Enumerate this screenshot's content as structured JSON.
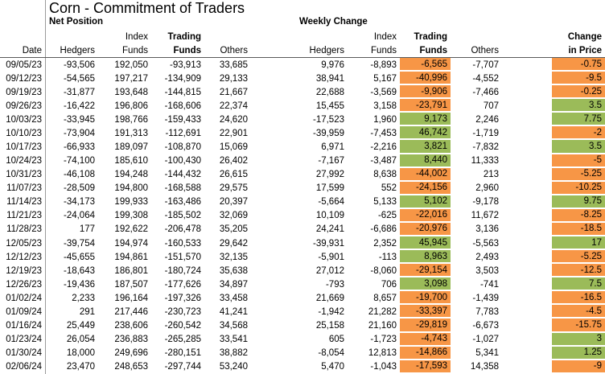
{
  "title": "Corn - Commitment of Traders",
  "sections": {
    "net_position": "Net Position",
    "weekly_change": "Weekly Change"
  },
  "columns": {
    "date": "Date",
    "hedgers": "Hedgers",
    "index_line1": "Index",
    "index_line2": "Funds",
    "trading_line1": "Trading",
    "trading_line2": "Funds",
    "others": "Others",
    "change_line1": "Change",
    "change_line2": "in Price"
  },
  "colors": {
    "negative": "#F79646",
    "positive": "#9BBB59"
  },
  "rows": [
    {
      "date": "09/05/23",
      "np": [
        "-93,506",
        "192,050",
        "-93,913",
        "33,685"
      ],
      "wc": [
        "9,976",
        "-8,893",
        "-6,565",
        "-7,707"
      ],
      "price": "-0.75"
    },
    {
      "date": "09/12/23",
      "np": [
        "-54,565",
        "197,217",
        "-134,909",
        "29,133"
      ],
      "wc": [
        "38,941",
        "5,167",
        "-40,996",
        "-4,552"
      ],
      "price": "-9.5"
    },
    {
      "date": "09/19/23",
      "np": [
        "-31,877",
        "193,648",
        "-144,815",
        "21,667"
      ],
      "wc": [
        "22,688",
        "-3,569",
        "-9,906",
        "-7,466"
      ],
      "price": "-0.25"
    },
    {
      "date": "09/26/23",
      "np": [
        "-16,422",
        "196,806",
        "-168,606",
        "22,374"
      ],
      "wc": [
        "15,455",
        "3,158",
        "-23,791",
        "707"
      ],
      "price": "3.5"
    },
    {
      "date": "10/03/23",
      "np": [
        "-33,945",
        "198,766",
        "-159,433",
        "24,620"
      ],
      "wc": [
        "-17,523",
        "1,960",
        "9,173",
        "2,246"
      ],
      "price": "7.75"
    },
    {
      "date": "10/10/23",
      "np": [
        "-73,904",
        "191,313",
        "-112,691",
        "22,901"
      ],
      "wc": [
        "-39,959",
        "-7,453",
        "46,742",
        "-1,719"
      ],
      "price": "-2"
    },
    {
      "date": "10/17/23",
      "np": [
        "-66,933",
        "189,097",
        "-108,870",
        "15,069"
      ],
      "wc": [
        "6,971",
        "-2,216",
        "3,821",
        "-7,832"
      ],
      "price": "3.5"
    },
    {
      "date": "10/24/23",
      "np": [
        "-74,100",
        "185,610",
        "-100,430",
        "26,402"
      ],
      "wc": [
        "-7,167",
        "-3,487",
        "8,440",
        "11,333"
      ],
      "price": "-5"
    },
    {
      "date": "10/31/23",
      "np": [
        "-46,108",
        "194,248",
        "-144,432",
        "26,615"
      ],
      "wc": [
        "27,992",
        "8,638",
        "-44,002",
        "213"
      ],
      "price": "-5.25"
    },
    {
      "date": "11/07/23",
      "np": [
        "-28,509",
        "194,800",
        "-168,588",
        "29,575"
      ],
      "wc": [
        "17,599",
        "552",
        "-24,156",
        "2,960"
      ],
      "price": "-10.25"
    },
    {
      "date": "11/14/23",
      "np": [
        "-34,173",
        "199,933",
        "-163,486",
        "20,397"
      ],
      "wc": [
        "-5,664",
        "5,133",
        "5,102",
        "-9,178"
      ],
      "price": "9.75"
    },
    {
      "date": "11/21/23",
      "np": [
        "-24,064",
        "199,308",
        "-185,502",
        "32,069"
      ],
      "wc": [
        "10,109",
        "-625",
        "-22,016",
        "11,672"
      ],
      "price": "-8.25"
    },
    {
      "date": "11/28/23",
      "np": [
        "177",
        "192,622",
        "-206,478",
        "35,205"
      ],
      "wc": [
        "24,241",
        "-6,686",
        "-20,976",
        "3,136"
      ],
      "price": "-18.5"
    },
    {
      "date": "12/05/23",
      "np": [
        "-39,754",
        "194,974",
        "-160,533",
        "29,642"
      ],
      "wc": [
        "-39,931",
        "2,352",
        "45,945",
        "-5,563"
      ],
      "price": "17"
    },
    {
      "date": "12/12/23",
      "np": [
        "-45,655",
        "194,861",
        "-151,570",
        "32,135"
      ],
      "wc": [
        "-5,901",
        "-113",
        "8,963",
        "2,493"
      ],
      "price": "-5.25"
    },
    {
      "date": "12/19/23",
      "np": [
        "-18,643",
        "186,801",
        "-180,724",
        "35,638"
      ],
      "wc": [
        "27,012",
        "-8,060",
        "-29,154",
        "3,503"
      ],
      "price": "-12.5"
    },
    {
      "date": "12/26/23",
      "np": [
        "-19,436",
        "187,507",
        "-177,626",
        "34,897"
      ],
      "wc": [
        "-793",
        "706",
        "3,098",
        "-741"
      ],
      "price": "7.5"
    },
    {
      "date": "01/02/24",
      "np": [
        "2,233",
        "196,164",
        "-197,326",
        "33,458"
      ],
      "wc": [
        "21,669",
        "8,657",
        "-19,700",
        "-1,439"
      ],
      "price": "-16.5"
    },
    {
      "date": "01/09/24",
      "np": [
        "291",
        "217,446",
        "-230,723",
        "41,241"
      ],
      "wc": [
        "-1,942",
        "21,282",
        "-33,397",
        "7,783"
      ],
      "price": "-4.5"
    },
    {
      "date": "01/16/24",
      "np": [
        "25,449",
        "238,606",
        "-260,542",
        "34,568"
      ],
      "wc": [
        "25,158",
        "21,160",
        "-29,819",
        "-6,673"
      ],
      "price": "-15.75"
    },
    {
      "date": "01/23/24",
      "np": [
        "26,054",
        "236,883",
        "-265,285",
        "33,541"
      ],
      "wc": [
        "605",
        "-1,723",
        "-4,743",
        "-1,027"
      ],
      "price": "3"
    },
    {
      "date": "01/30/24",
      "np": [
        "18,000",
        "249,696",
        "-280,151",
        "38,882"
      ],
      "wc": [
        "-8,054",
        "12,813",
        "-14,866",
        "5,341"
      ],
      "price": "1.25"
    },
    {
      "date": "02/06/24",
      "np": [
        "23,470",
        "248,653",
        "-297,744",
        "53,240"
      ],
      "wc": [
        "5,470",
        "-1,043",
        "-17,593",
        "14,358"
      ],
      "price": "-9"
    }
  ]
}
